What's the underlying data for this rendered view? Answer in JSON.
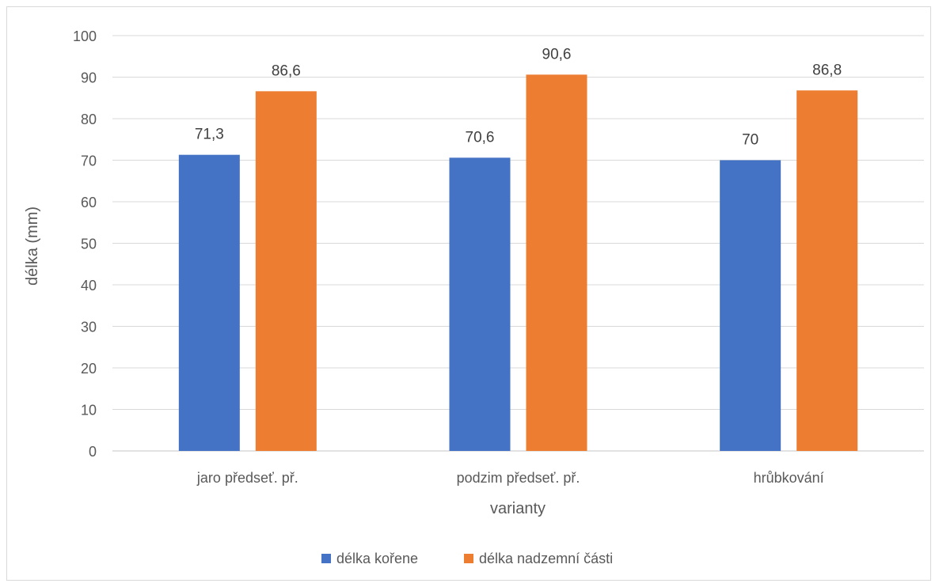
{
  "chart_data": {
    "type": "bar",
    "title": "",
    "xlabel": "varianty",
    "ylabel": "délka (mm)",
    "ylim": [
      0,
      100
    ],
    "yticks": [
      "0",
      "10",
      "20",
      "30",
      "40",
      "50",
      "60",
      "70",
      "80",
      "90",
      "100"
    ],
    "categories": [
      "jaro předseť. př.",
      "podzim předseť. př.",
      "hrůbkování"
    ],
    "series": [
      {
        "name": "délka kořene",
        "values": [
          71.3,
          70.6,
          70
        ],
        "labels": [
          "71,3",
          "70,6",
          "70"
        ],
        "color": "#4472C4"
      },
      {
        "name": "délka nadzemní části",
        "values": [
          86.6,
          90.6,
          86.8
        ],
        "labels": [
          "86,6",
          "90,6",
          "86,8"
        ],
        "color": "#ED7D31"
      }
    ],
    "grid": true,
    "legend": "bottom"
  }
}
